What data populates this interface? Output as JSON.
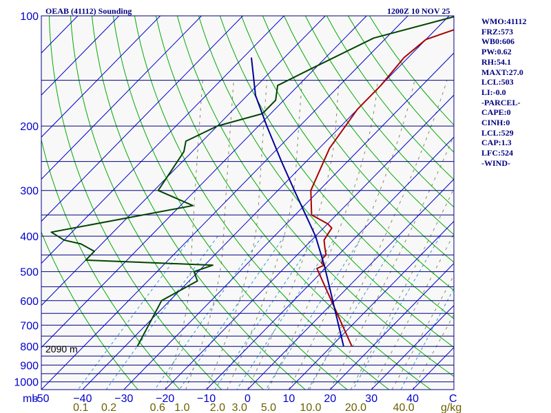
{
  "chart_data": {
    "type": "line",
    "title": "OEAB (41112) Sounding",
    "time": "1200Z 10 NOV 25",
    "station_elevation": "2090 m",
    "pressure_unit_label": "mb",
    "temp_unit_label": "C",
    "mix_unit_label": "g/kg",
    "pressure_range_mb": [
      100,
      1050
    ],
    "temp_range_c": [
      -50,
      50
    ],
    "pressure_ticks": [
      100,
      200,
      300,
      400,
      500,
      600,
      700,
      800,
      900,
      1000
    ],
    "pressure_tick_labels": [
      "100",
      "200",
      "300",
      "400",
      "500",
      "600",
      "700",
      "800",
      "900",
      "1000"
    ],
    "isobars_mb": [
      150,
      200,
      250,
      300,
      350,
      400,
      450,
      500,
      550,
      600,
      650,
      700,
      750,
      800,
      850,
      900,
      950,
      1000
    ],
    "temp_ticks": [
      -50,
      -40,
      -30,
      -20,
      -10,
      0,
      10,
      20,
      30,
      40
    ],
    "temp_tick_labels": [
      "-50",
      "−40",
      "−30",
      "−20",
      "−10",
      "0",
      "10",
      "20",
      "30",
      "40"
    ],
    "mixing_ratio_labels": [
      "0.1",
      "0.2",
      "0.6",
      "1.0",
      "2.0",
      "3.0",
      "5.0",
      "10.0",
      "20.0",
      "40.0"
    ],
    "mixing_ratio_values": [
      0.1,
      0.2,
      0.6,
      1.0,
      2.0,
      3.0,
      5.0,
      10.0,
      20.0,
      40.0
    ],
    "series": [
      {
        "name": "Temperature",
        "color": "#aa0000",
        "points": [
          [
            100,
            -29
          ],
          [
            116,
            -40
          ],
          [
            130,
            -41
          ],
          [
            155,
            -40
          ],
          [
            180,
            -40
          ],
          [
            230,
            -37.5
          ],
          [
            300,
            -32
          ],
          [
            350,
            -26
          ],
          [
            370,
            -20
          ],
          [
            380,
            -18
          ],
          [
            395,
            -17.5
          ],
          [
            410,
            -17
          ],
          [
            430,
            -15
          ],
          [
            450,
            -13
          ],
          [
            460,
            -13
          ],
          [
            475,
            -12
          ],
          [
            480,
            -11
          ],
          [
            490,
            -12
          ],
          [
            800,
            15
          ]
        ]
      },
      {
        "name": "Dewpoint",
        "color": "#004400",
        "points": [
          [
            100,
            -38
          ],
          [
            115,
            -53
          ],
          [
            140,
            -61
          ],
          [
            155,
            -65
          ],
          [
            170,
            -62
          ],
          [
            185,
            -62
          ],
          [
            200,
            -70
          ],
          [
            220,
            -74
          ],
          [
            235,
            -72
          ],
          [
            300,
            -69
          ],
          [
            330,
            -57
          ],
          [
            390,
            -85
          ],
          [
            410,
            -80
          ],
          [
            420,
            -75
          ],
          [
            440,
            -70
          ],
          [
            465,
            -70
          ],
          [
            480,
            -38
          ],
          [
            500,
            -41
          ],
          [
            530,
            -38
          ],
          [
            600,
            -42
          ],
          [
            800,
            -37
          ]
        ]
      },
      {
        "name": "Parcel",
        "color": "#000099",
        "points": [
          [
            800,
            13
          ],
          [
            480,
            -11
          ],
          [
            400,
            -20
          ],
          [
            300,
            -36
          ],
          [
            250,
            -46
          ],
          [
            200,
            -58
          ],
          [
            165,
            -68
          ],
          [
            130,
            -78
          ]
        ]
      }
    ]
  },
  "stats": [
    "WMO:41112",
    "FRZ:573",
    "WB0:606",
    "PW:0.62",
    "RH:54.1",
    "MAXT:27.0",
    "LCL:503",
    "LI:-0.0",
    "-PARCEL-",
    "CAPE:0",
    "CINH:0",
    "LCL:529",
    "CAP:1.3",
    "LFC:524",
    "-WIND-"
  ],
  "colors": {
    "isobar": "#000080",
    "isotherm": "#0000cc",
    "dry_adiabat": "#00aa00",
    "moist_adiabat": "#888866",
    "mixing_ratio": "#3399cc",
    "plot_bg": "#f8f8f8"
  }
}
